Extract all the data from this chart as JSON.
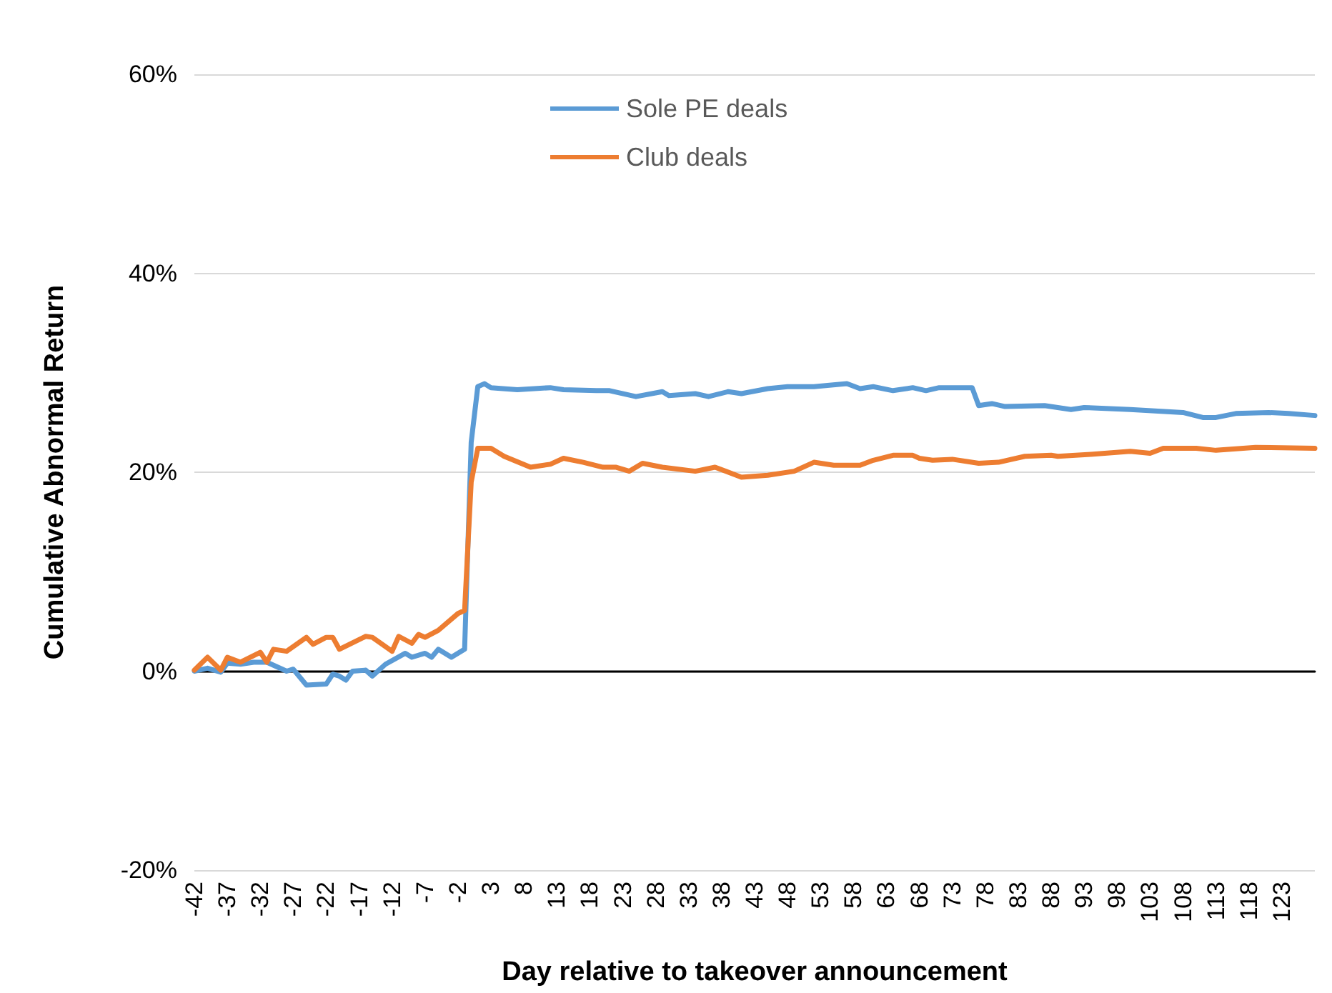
{
  "chart_data": {
    "type": "line",
    "xlabel": "Day relative to takeover announcement",
    "ylabel": "Cumulative Abnormal Return",
    "xlim": [
      -42,
      128
    ],
    "xticks": [
      -42,
      -37,
      -32,
      -27,
      -22,
      -17,
      -12,
      -7,
      -2,
      3,
      8,
      13,
      18,
      23,
      28,
      33,
      38,
      43,
      48,
      53,
      58,
      63,
      68,
      73,
      78,
      83,
      88,
      93,
      98,
      103,
      108,
      113,
      118,
      123
    ],
    "ylim": [
      -20,
      60
    ],
    "yticks": [
      {
        "value": -20,
        "label": "-20%"
      },
      {
        "value": 0,
        "label": "0%"
      },
      {
        "value": 20,
        "label": "20%"
      },
      {
        "value": 40,
        "label": "40%"
      },
      {
        "value": 60,
        "label": "60%"
      }
    ],
    "grid": "y",
    "legend": "top",
    "marker": "none",
    "line_style": "solid",
    "series": [
      {
        "name": "Sole PE deals",
        "color": "#5b9bd5",
        "x": [
          -42,
          -40,
          -38,
          -37,
          -35,
          -33,
          -31,
          -28,
          -27,
          -25,
          -22,
          -21,
          -20,
          -19,
          -18,
          -16,
          -15,
          -13,
          -10,
          -9,
          -7,
          -6,
          -5,
          -3,
          -1,
          0,
          1,
          2,
          3,
          7,
          12,
          14,
          19,
          21,
          25,
          29,
          30,
          34,
          36,
          39,
          41,
          45,
          48,
          50,
          52,
          57,
          59,
          61,
          64,
          67,
          69,
          71,
          75,
          76,
          77,
          79,
          81,
          87,
          91,
          93,
          100,
          108,
          111,
          113,
          116,
          121,
          124,
          128
        ],
        "values": [
          0,
          0.3,
          -0.1,
          0.8,
          0.7,
          0.9,
          0.9,
          0,
          0.2,
          -1.4,
          -1.3,
          -0.3,
          -0.5,
          -0.9,
          0,
          0.1,
          -0.5,
          0.7,
          1.8,
          1.4,
          1.8,
          1.4,
          2.2,
          1.4,
          2.2,
          23,
          28.6,
          28.9,
          28.5,
          28.3,
          28.5,
          28.3,
          28.2,
          28.2,
          27.6,
          28.1,
          27.7,
          27.9,
          27.6,
          28.1,
          27.9,
          28.4,
          28.6,
          28.6,
          28.6,
          28.9,
          28.4,
          28.6,
          28.2,
          28.5,
          28.2,
          28.5,
          28.5,
          28.5,
          26.7,
          26.9,
          26.6,
          26.7,
          26.3,
          26.5,
          26.3,
          26,
          25.5,
          25.5,
          25.9,
          26,
          25.9,
          25.7
        ]
      },
      {
        "name": "Club deals",
        "color": "#ed7d31",
        "x": [
          -42,
          -40,
          -38,
          -37,
          -35,
          -32,
          -31,
          -30,
          -28,
          -25,
          -24,
          -22,
          -21,
          -20,
          -16,
          -15,
          -12,
          -11,
          -9,
          -8,
          -7,
          -5,
          -2,
          -1,
          0,
          1,
          3,
          5,
          9,
          12,
          14,
          17,
          20,
          22,
          24,
          26,
          29,
          34,
          37,
          41,
          45,
          49,
          52,
          55,
          59,
          61,
          64,
          67,
          68,
          70,
          73,
          77,
          80,
          84,
          88,
          89,
          94,
          100,
          103,
          105,
          110,
          113,
          119,
          128
        ],
        "values": [
          0.1,
          1.4,
          0.1,
          1.4,
          0.9,
          1.9,
          0.9,
          2.2,
          2,
          3.4,
          2.7,
          3.4,
          3.4,
          2.2,
          3.5,
          3.4,
          2,
          3.5,
          2.8,
          3.7,
          3.4,
          4.1,
          5.8,
          6.1,
          19,
          22.4,
          22.4,
          21.6,
          20.5,
          20.8,
          21.4,
          21,
          20.5,
          20.5,
          20.1,
          20.9,
          20.5,
          20.1,
          20.5,
          19.5,
          19.7,
          20.1,
          21,
          20.7,
          20.7,
          21.2,
          21.7,
          21.7,
          21.4,
          21.2,
          21.3,
          20.9,
          21,
          21.6,
          21.7,
          21.6,
          21.8,
          22.1,
          21.9,
          22.4,
          22.4,
          22.2,
          22.5,
          22.4
        ]
      }
    ]
  }
}
